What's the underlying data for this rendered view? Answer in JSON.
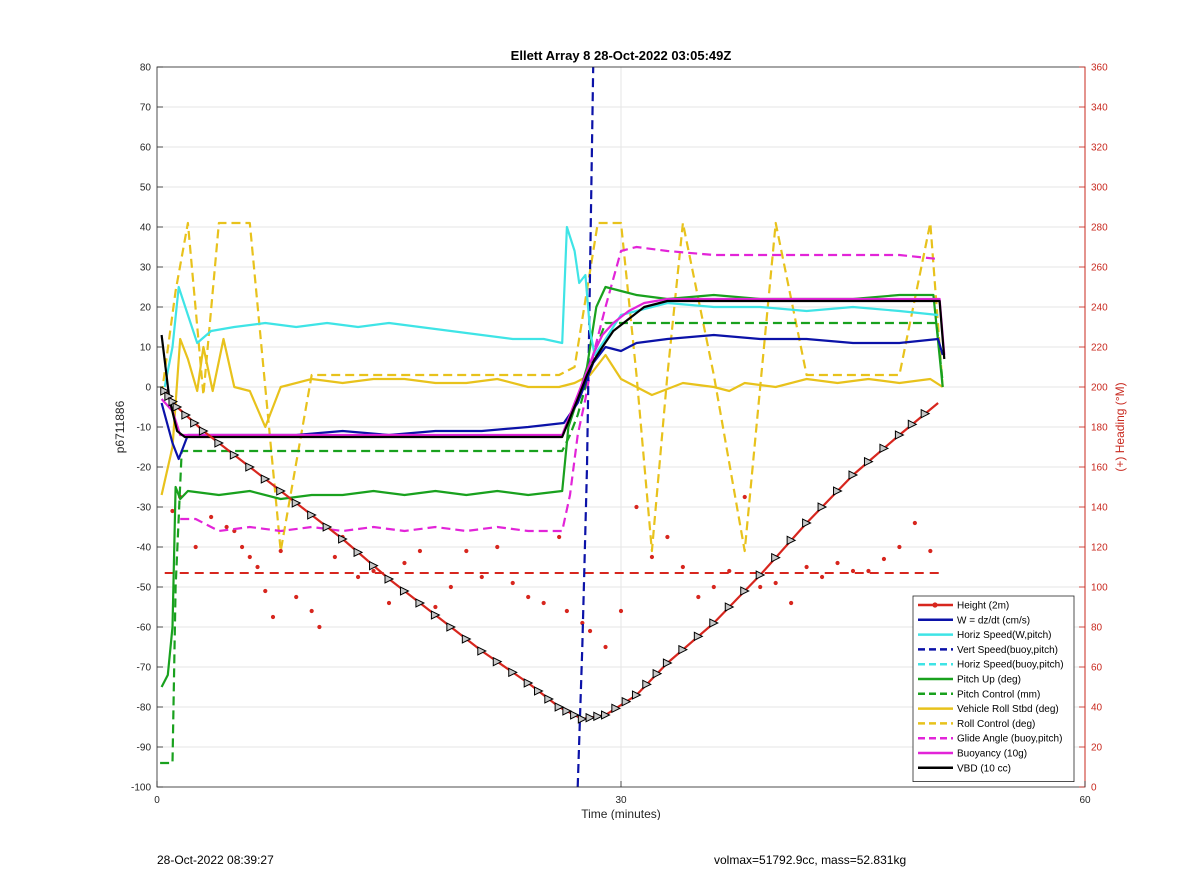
{
  "chart_data": {
    "type": "line",
    "title": "Ellett Array 8 28-Oct-2022 03:05:49Z",
    "xlabel": "Time (minutes)",
    "ylabel": "p6711886",
    "y2label": "(+) Heading (°M)",
    "xlim": [
      0,
      60
    ],
    "ylim": [
      -100,
      80
    ],
    "y2lim": [
      0,
      360
    ],
    "xticks": [
      "0",
      "30",
      "60"
    ],
    "yticks": [
      "80",
      "70",
      "60",
      "50",
      "40",
      "30",
      "20",
      "10",
      "0",
      "-10",
      "-20",
      "-30",
      "-40",
      "-50",
      "-60",
      "-70",
      "-80",
      "-90",
      "-100"
    ],
    "y2ticks": [
      "360",
      "340",
      "320",
      "300",
      "280",
      "260",
      "240",
      "220",
      "200",
      "180",
      "160",
      "140",
      "120",
      "100",
      "80",
      "60",
      "40",
      "20",
      "0"
    ],
    "grid": true,
    "legend_position": "bottom-right",
    "colors": {
      "red": "#d7261e",
      "blue": "#0b12a8",
      "cyan": "#3fe4e6",
      "green": "#19a11e",
      "yellow": "#e8c21c",
      "magenta": "#e224d8",
      "black": "#000000",
      "right_axis": "#c8281e"
    },
    "series": [
      {
        "name": "Height (2m)",
        "color": "#d7261e",
        "style": "solid-marker",
        "x": [
          0.5,
          1.3,
          3,
          6,
          9,
          12,
          15,
          18,
          21,
          24,
          26,
          27.5,
          29,
          31,
          33,
          36,
          39,
          42,
          45,
          48,
          50.5
        ],
        "y": [
          -1,
          -5,
          -11,
          -20,
          -29,
          -38,
          -48,
          -57,
          -66,
          -74,
          -80,
          -83,
          -82,
          -77,
          -69,
          -59,
          -47,
          -34,
          -22,
          -12,
          -4
        ]
      },
      {
        "name": "W = dz/dt (cm/s)",
        "color": "#0b12a8",
        "style": "solid",
        "x": [
          0.3,
          1.0,
          1.4,
          2.0,
          3,
          6,
          9,
          12,
          15,
          18,
          21,
          24,
          26.3,
          27.2,
          27.8,
          28.2,
          29,
          30,
          31,
          33,
          36,
          39,
          42,
          45,
          48,
          50.5,
          50.8
        ],
        "y": [
          -4,
          -14,
          -18,
          -12,
          -12,
          -12,
          -12,
          -11,
          -12,
          -11,
          -11,
          -10,
          -9,
          -4,
          2,
          6,
          10,
          9,
          11,
          12,
          13,
          12,
          12,
          11,
          11,
          12,
          8
        ]
      },
      {
        "name": "Horiz Speed(W,pitch)",
        "color": "#3fe4e6",
        "style": "solid",
        "x": [
          0.5,
          1.0,
          1.4,
          2.0,
          2.6,
          3.5,
          5,
          7,
          9,
          11,
          13,
          15,
          17,
          19,
          21,
          23,
          25,
          26.2,
          26.5,
          27.0,
          27.3,
          27.7,
          28.0,
          28.3,
          29,
          30,
          31,
          33,
          36,
          39,
          42,
          45,
          48,
          50.5
        ],
        "y": [
          0,
          10,
          25,
          18,
          11,
          14,
          15,
          16,
          15,
          16,
          15,
          16,
          15,
          14,
          13,
          12,
          12,
          11,
          40,
          34,
          26,
          28,
          14,
          8,
          12,
          18,
          19,
          21,
          20,
          20,
          19,
          20,
          19,
          18
        ]
      },
      {
        "name": "Vert Speed(buoy,pitch)",
        "color": "#0b12a8",
        "style": "dashed",
        "x": [
          27.2,
          27.5,
          27.8,
          28.0,
          28.2
        ],
        "y": [
          -100,
          -65,
          -20,
          30,
          80
        ]
      },
      {
        "name": "Horiz Speed(buoy,pitch)",
        "color": "#3fe4e6",
        "style": "dashed",
        "x": [],
        "y": []
      },
      {
        "name": "Pitch Up (deg)",
        "color": "#19a11e",
        "style": "solid",
        "x": [
          0.3,
          0.7,
          1.0,
          1.2,
          1.5,
          2.0,
          4,
          6,
          8,
          10,
          12,
          14,
          16,
          18,
          20,
          22,
          24,
          26.2,
          26.6,
          27.2,
          27.8,
          28.4,
          29.0,
          30,
          31,
          33,
          36,
          39,
          42,
          45,
          48,
          50.2,
          50.8
        ],
        "y": [
          -75,
          -72,
          -60,
          -25,
          -28,
          -26,
          -27,
          -26,
          -28,
          -27,
          -27,
          -26,
          -27,
          -26,
          -27,
          -26,
          -27,
          -26,
          -10,
          -3,
          5,
          20,
          25,
          24,
          23,
          22,
          23,
          22,
          22,
          22,
          23,
          23,
          0
        ]
      },
      {
        "name": "Pitch Control (mm)",
        "color": "#19a11e",
        "style": "dashed",
        "x": [
          0.2,
          1.0,
          1.2,
          1.6,
          4,
          10,
          16,
          22,
          26.2,
          26.7,
          27.2,
          27.7,
          28.2,
          29,
          30,
          36,
          42,
          48,
          50.4,
          50.8
        ],
        "y": [
          -94,
          -94,
          -50,
          -16,
          -16,
          -16,
          -16,
          -16,
          -16,
          -12,
          -7,
          0,
          8,
          16,
          16,
          16,
          16,
          16,
          16,
          1
        ]
      },
      {
        "name": "Vehicle Roll Stbd (deg)",
        "color": "#e8c21c",
        "style": "solid",
        "x": [
          0.3,
          1.0,
          1.5,
          2.0,
          2.6,
          3.0,
          3.6,
          4.3,
          5,
          6,
          7,
          8,
          10,
          12,
          14,
          16,
          18,
          20,
          22,
          24,
          26,
          27,
          28,
          29,
          30,
          31,
          32,
          34,
          36,
          37,
          38,
          40,
          42,
          44,
          46,
          48,
          50,
          50.8
        ],
        "y": [
          -27,
          -15,
          12,
          7,
          -1,
          10,
          -1,
          12,
          0,
          -1,
          -10,
          0,
          2,
          1,
          2,
          2,
          1,
          1,
          2,
          0,
          0,
          1,
          3,
          8,
          2,
          0,
          -2,
          1,
          0,
          -1,
          1,
          0,
          2,
          1,
          2,
          1,
          2,
          0
        ]
      },
      {
        "name": "Roll Control (deg)",
        "color": "#e8c21c",
        "style": "dashed",
        "x": [
          0.3,
          1.2,
          2.0,
          3.0,
          4.0,
          6.0,
          8,
          10,
          12,
          14,
          16,
          18,
          20,
          22,
          24,
          26,
          27,
          28.5,
          30,
          31,
          32,
          33,
          34,
          36,
          38,
          40,
          42,
          44,
          46,
          48,
          50,
          50.8
        ],
        "y": [
          -2,
          24,
          41,
          -2,
          41,
          41,
          -41,
          3,
          3,
          3,
          3,
          3,
          3,
          3,
          3,
          3,
          5,
          41,
          41,
          3,
          -41,
          3,
          41,
          3,
          -41,
          41,
          3,
          3,
          3,
          3,
          41,
          0
        ]
      },
      {
        "name": "Glide Angle (buoy,pitch)",
        "color": "#e224d8",
        "style": "dashed",
        "x": [
          1.5,
          2.5,
          4,
          6,
          8,
          10,
          12,
          14,
          16,
          18,
          20,
          22,
          24,
          26.2,
          26.7,
          27.2,
          27.7,
          28.2,
          29,
          30,
          31,
          33,
          36,
          39,
          42,
          45,
          48,
          50.5
        ],
        "y": [
          -33,
          -33,
          -36,
          -35,
          -36,
          -35,
          -36,
          -35,
          -36,
          -35,
          -36,
          -35,
          -36,
          -36,
          -27,
          -12,
          -3,
          8,
          20,
          34,
          35,
          34,
          33,
          33,
          33,
          33,
          33,
          32
        ]
      },
      {
        "name": "Buoyancy (10g)",
        "color": "#e224d8",
        "style": "solid",
        "x": [
          0.3,
          1.0,
          1.5,
          2.0,
          8,
          14,
          20,
          26.2,
          27.2,
          27.8,
          28.3,
          28.8,
          29.5,
          30.5,
          31.5,
          33,
          36,
          39,
          42,
          45,
          48,
          50.6,
          50.9
        ],
        "y": [
          -3,
          -6,
          -12,
          -12,
          -12,
          -12,
          -12,
          -12,
          -2,
          4,
          9,
          13,
          16,
          19,
          21,
          22,
          22,
          22,
          22,
          22,
          22,
          22,
          8
        ]
      },
      {
        "name": "VBD (10 cc)",
        "color": "#000000",
        "style": "solid",
        "x": [
          0.3,
          0.8,
          1.3,
          1.8,
          8,
          14,
          20,
          26.2,
          27.2,
          27.8,
          28.3,
          28.8,
          29.5,
          30.5,
          31.5,
          33,
          36,
          39,
          42,
          45,
          48,
          50.6,
          50.9
        ],
        "y": [
          13,
          -3,
          -11,
          -12.5,
          -12.5,
          -12.5,
          -12.5,
          -12.5,
          -3,
          3,
          7,
          10,
          14,
          17,
          20,
          21.5,
          21.5,
          21.5,
          21.5,
          21.5,
          21.5,
          21.5,
          7
        ]
      }
    ],
    "heading": {
      "name": "Heading",
      "axis": "right",
      "color": "#d7261e",
      "mean_line": 107,
      "x": [
        1,
        1.5,
        2.5,
        3.5,
        4.5,
        5,
        5.5,
        6,
        6.5,
        7,
        7.5,
        8,
        9,
        10,
        10.5,
        11.5,
        12,
        13,
        14,
        15,
        16,
        17,
        18,
        19,
        20,
        21,
        22,
        23,
        24,
        25,
        26,
        26.5,
        27.5,
        28,
        29,
        30,
        31,
        32,
        33,
        34,
        35,
        36,
        37,
        38,
        39,
        40,
        41,
        42,
        43,
        44,
        45,
        46,
        47,
        48,
        49,
        50
      ],
      "y": [
        138,
        145,
        120,
        135,
        130,
        128,
        120,
        115,
        110,
        98,
        85,
        118,
        95,
        88,
        80,
        115,
        125,
        105,
        108,
        92,
        112,
        118,
        90,
        100,
        118,
        105,
        120,
        102,
        95,
        92,
        125,
        88,
        82,
        78,
        70,
        88,
        140,
        115,
        125,
        110,
        95,
        100,
        108,
        145,
        100,
        102,
        92,
        110,
        105,
        112,
        108,
        108,
        114,
        120,
        132,
        118
      ]
    }
  },
  "footer": {
    "left": "28-Oct-2022 08:39:27",
    "right": "volmax=51792.9cc, mass=52.831kg"
  }
}
